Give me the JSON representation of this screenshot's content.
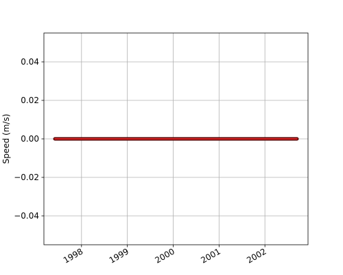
{
  "chart_data": {
    "type": "line",
    "y_label": "Speed (m/s)",
    "x": [
      1997.42,
      2002.7
    ],
    "series": [
      {
        "name": "Speed",
        "color": "#d62728",
        "values": [
          0,
          0
        ]
      }
    ],
    "xlim": [
      1997.18,
      2002.94
    ],
    "xticks": [
      1998,
      1999,
      2000,
      2001,
      2002
    ],
    "ylim": [
      -0.055,
      0.055
    ],
    "yticks": [
      {
        "value": -0.04,
        "label": "−0.04"
      },
      {
        "value": -0.02,
        "label": "−0.02"
      },
      {
        "value": 0,
        "label": "0.00"
      },
      0.02,
      0.04
    ],
    "grid": true
  }
}
